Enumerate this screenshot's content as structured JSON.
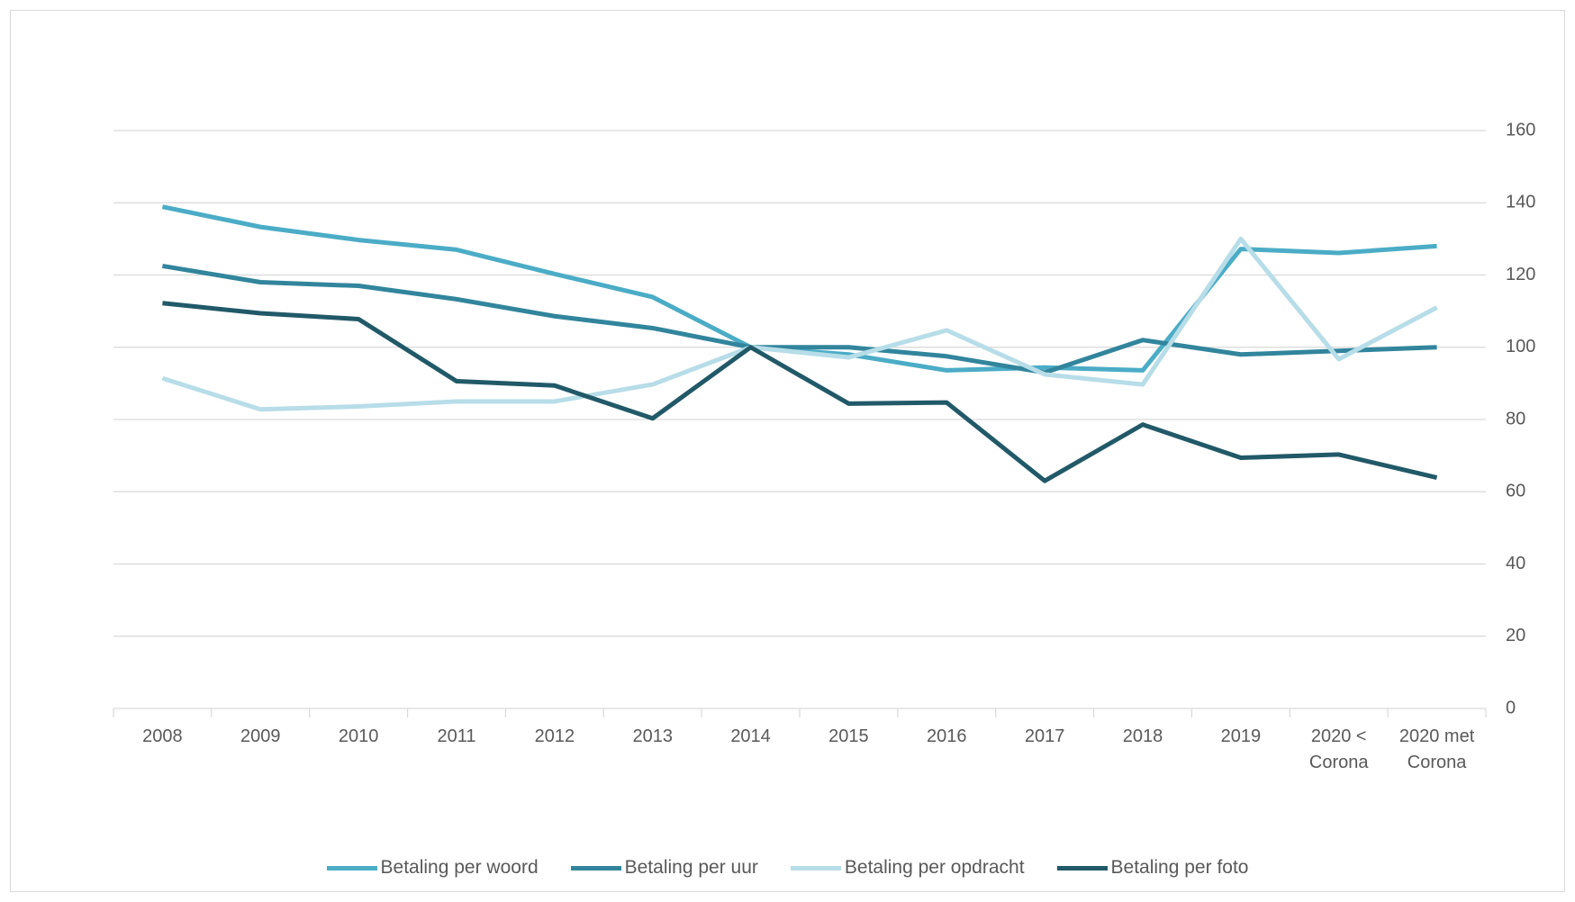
{
  "chart_data": {
    "type": "line",
    "categories": [
      "2008",
      "2009",
      "2010",
      "2011",
      "2012",
      "2013",
      "2014",
      "2015",
      "2016",
      "2017",
      "2018",
      "2019",
      "2020 < Corona",
      "2020 met Corona"
    ],
    "series": [
      {
        "name": "Betaling per woord",
        "color": "#4bacc6",
        "values": [
          138.9,
          133.3,
          129.7,
          127,
          120.3,
          113.9,
          100,
          98,
          93.6,
          94.4,
          93.6,
          127.2,
          126.1,
          128
        ]
      },
      {
        "name": "Betaling per uur",
        "color": "#31859c",
        "values": [
          122.5,
          118,
          117,
          113.3,
          108.6,
          105.3,
          100,
          100,
          97.5,
          93,
          102,
          98,
          99,
          100
        ]
      },
      {
        "name": "Betaling per opdracht",
        "color": "#b7dde8",
        "values": [
          91.4,
          82.8,
          83.6,
          85,
          85,
          89.7,
          100,
          97.2,
          104.7,
          92.5,
          89.7,
          130,
          96.7,
          111
        ]
      },
      {
        "name": "Betaling per foto",
        "color": "#215968",
        "values": [
          112.2,
          109.4,
          107.8,
          90.6,
          89.4,
          80.3,
          100,
          84.4,
          84.7,
          63,
          78.6,
          69.4,
          70.3,
          63.9
        ]
      }
    ],
    "ylim": [
      0,
      160
    ],
    "yticks": [
      0,
      20,
      40,
      60,
      80,
      100,
      120,
      140,
      160
    ],
    "grid": true,
    "legend": "bottom"
  }
}
